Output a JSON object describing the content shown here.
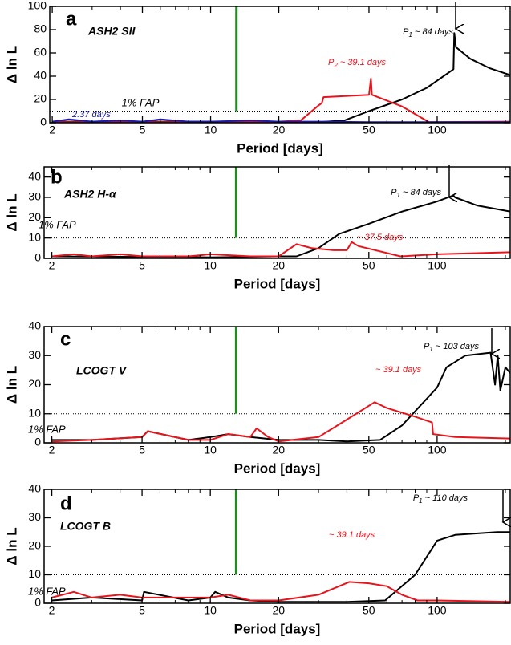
{
  "chart_data": [
    {
      "type": "line",
      "panel_label": "a",
      "title": "ASH2 SII",
      "xlabel": "Period [days]",
      "ylabel": "Δ ln L",
      "xscale": "log",
      "xlim": [
        1.95,
        210
      ],
      "xticks": [
        2,
        5,
        10,
        20,
        50,
        100
      ],
      "xminorticks": [
        3,
        4,
        6,
        7,
        8,
        9,
        30,
        40,
        60,
        70,
        80,
        90,
        200
      ],
      "ylim": [
        0,
        100
      ],
      "yticks": [
        0,
        20,
        40,
        60,
        80,
        100
      ],
      "fap_value": 10,
      "fap_label": "1% FAP",
      "vline": {
        "x": 13,
        "from": 10,
        "color": "#1e8c1e"
      },
      "series": [
        {
          "color": "#000000",
          "x": [
            2,
            10,
            20,
            30,
            39,
            50,
            70,
            90,
            118,
            119,
            121,
            140,
            170,
            210
          ],
          "values": [
            1,
            1,
            0.5,
            0.5,
            2,
            10,
            20,
            30,
            46,
            77,
            65,
            55,
            47,
            41
          ]
        },
        {
          "color": "#e8141c",
          "x": [
            2,
            10,
            20,
            25,
            30,
            31,
            31.5,
            50,
            51,
            51.5,
            70,
            92,
            210
          ],
          "values": [
            0.5,
            0.5,
            1,
            2,
            15,
            17,
            22,
            24,
            38,
            24,
            14,
            0.5,
            1
          ]
        },
        {
          "color": "#1a1aa8",
          "x": [
            2,
            2.37,
            3,
            4,
            5,
            6,
            8,
            10,
            15,
            20,
            30,
            50,
            100,
            210
          ],
          "values": [
            1,
            3,
            1,
            2,
            1,
            3,
            1,
            1,
            2,
            1,
            1,
            0.5,
            0.5,
            0.5
          ]
        }
      ],
      "annotations": [
        {
          "text": [
            "P",
            "1",
            " ~ 84 days"
          ],
          "color": "#000000"
        },
        {
          "text": [
            "P",
            "2",
            " ~ 39.1 days"
          ],
          "color": "#e8141c"
        },
        {
          "text": "2.37 days",
          "color": "#1a1aa8"
        }
      ]
    },
    {
      "type": "line",
      "panel_label": "b",
      "title": "ASH2 H-α",
      "xlabel": "Period [days]",
      "ylabel": "Δ ln L",
      "xscale": "log",
      "xlim": [
        1.85,
        210
      ],
      "xticks": [
        2,
        5,
        10,
        20,
        50,
        100
      ],
      "xminorticks": [
        3,
        4,
        6,
        7,
        8,
        9,
        30,
        40,
        60,
        70,
        80,
        90,
        200
      ],
      "ylim": [
        0,
        45
      ],
      "yticks": [
        0,
        10,
        20,
        30,
        40
      ],
      "fap_value": 10,
      "fap_label": "1% FAP",
      "vline": {
        "x": 13,
        "from": 10,
        "color": "#1e8c1e"
      },
      "series": [
        {
          "color": "#000000",
          "x": [
            2,
            10,
            20,
            24,
            30,
            37,
            50,
            70,
            100,
            118,
            120,
            150,
            210
          ],
          "values": [
            1,
            0.5,
            1,
            1,
            5,
            12,
            17,
            23,
            28,
            31,
            30,
            26,
            23
          ]
        },
        {
          "color": "#e8141c",
          "x": [
            2,
            2.5,
            3,
            4,
            5,
            8,
            10,
            15,
            20,
            24,
            28,
            35,
            40,
            42,
            45,
            69,
            100,
            210
          ],
          "values": [
            1,
            2,
            1,
            2,
            1,
            1,
            2,
            1,
            1,
            7,
            5,
            4,
            4,
            8,
            6,
            1,
            2,
            3
          ]
        }
      ],
      "annotations": [
        {
          "text": [
            "P",
            "1",
            " ~ 84 days"
          ],
          "color": "#000000"
        },
        {
          "text": "~ 37.5 days",
          "color": "#e8141c"
        }
      ]
    },
    {
      "type": "line",
      "panel_label": "c",
      "title": "LCOGT V",
      "xlabel": "Period [days]",
      "ylabel": "Δ ln L",
      "xscale": "log",
      "xlim": [
        1.85,
        210
      ],
      "xticks": [
        2,
        5,
        10,
        20,
        50,
        100
      ],
      "xminorticks": [
        3,
        4,
        6,
        7,
        8,
        9,
        30,
        40,
        60,
        70,
        80,
        90,
        200
      ],
      "ylim": [
        0,
        40
      ],
      "yticks": [
        0,
        10,
        20,
        30,
        40
      ],
      "fap_value": 10,
      "fap_label": "1% FAP",
      "vline": {
        "x": 13,
        "from": 10,
        "color": "#1e8c1e"
      },
      "series": [
        {
          "color": "#000000",
          "x": [
            2,
            3,
            5,
            5.3,
            8,
            10,
            12,
            15,
            20,
            30,
            40,
            56,
            70,
            100,
            110,
            133,
            172,
            180,
            185,
            190,
            200,
            210
          ],
          "values": [
            1,
            1,
            2,
            4,
            1,
            2,
            3,
            2,
            1,
            1,
            0.5,
            1,
            6,
            19,
            26,
            30,
            31,
            20,
            30,
            18,
            26,
            24
          ]
        },
        {
          "color": "#e8141c",
          "x": [
            2,
            3,
            5,
            5.3,
            8,
            10,
            12,
            15,
            16,
            18,
            20,
            30,
            40,
            53,
            60,
            80,
            95,
            96,
            120,
            210
          ],
          "values": [
            0.5,
            1,
            2,
            4,
            1,
            1,
            3,
            2,
            5,
            2,
            0.5,
            2,
            8,
            14,
            12,
            9,
            7,
            3,
            2,
            1.5
          ]
        }
      ],
      "annotations": [
        {
          "text": [
            "P",
            "1",
            " ~ 103 days"
          ],
          "color": "#000000"
        },
        {
          "text": "~ 39.1 days",
          "color": "#e8141c"
        }
      ]
    },
    {
      "type": "line",
      "panel_label": "d",
      "title": "LCOGT B",
      "xlabel": "Period [days]",
      "ylabel": "Δ ln L",
      "xscale": "log",
      "xlim": [
        1.85,
        210
      ],
      "xticks": [
        2,
        5,
        10,
        20,
        50,
        100
      ],
      "xminorticks": [
        3,
        4,
        6,
        7,
        8,
        9,
        30,
        40,
        60,
        70,
        80,
        90,
        200
      ],
      "ylim": [
        0,
        40
      ],
      "yticks": [
        0,
        10,
        20,
        30,
        40
      ],
      "fap_value": 10,
      "fap_label": "1% FAP",
      "vline": {
        "x": 13,
        "from": 10,
        "color": "#1e8c1e"
      },
      "series": [
        {
          "color": "#000000",
          "x": [
            2,
            3,
            5,
            5.1,
            8,
            10,
            10.5,
            12,
            15,
            20,
            30,
            40,
            59,
            80,
            100,
            120,
            184,
            210
          ],
          "values": [
            1,
            2,
            1,
            4,
            1,
            2,
            4,
            2,
            1,
            0.5,
            0.5,
            0.5,
            1,
            10,
            22,
            24,
            25,
            25
          ]
        },
        {
          "color": "#e8141c",
          "x": [
            2,
            2.5,
            3,
            4,
            5,
            7,
            10,
            12,
            15,
            20,
            30,
            41,
            50,
            60,
            70,
            82,
            100,
            210
          ],
          "values": [
            2,
            4,
            2,
            3,
            2,
            2,
            2,
            3,
            1,
            1,
            3,
            7.5,
            7,
            6,
            3,
            1,
            1,
            0.5
          ]
        }
      ],
      "annotations": [
        {
          "text": [
            "P",
            "1",
            " ~ 110 days"
          ],
          "color": "#000000"
        },
        {
          "text": "~ 39.1 days",
          "color": "#e8141c"
        }
      ]
    }
  ]
}
